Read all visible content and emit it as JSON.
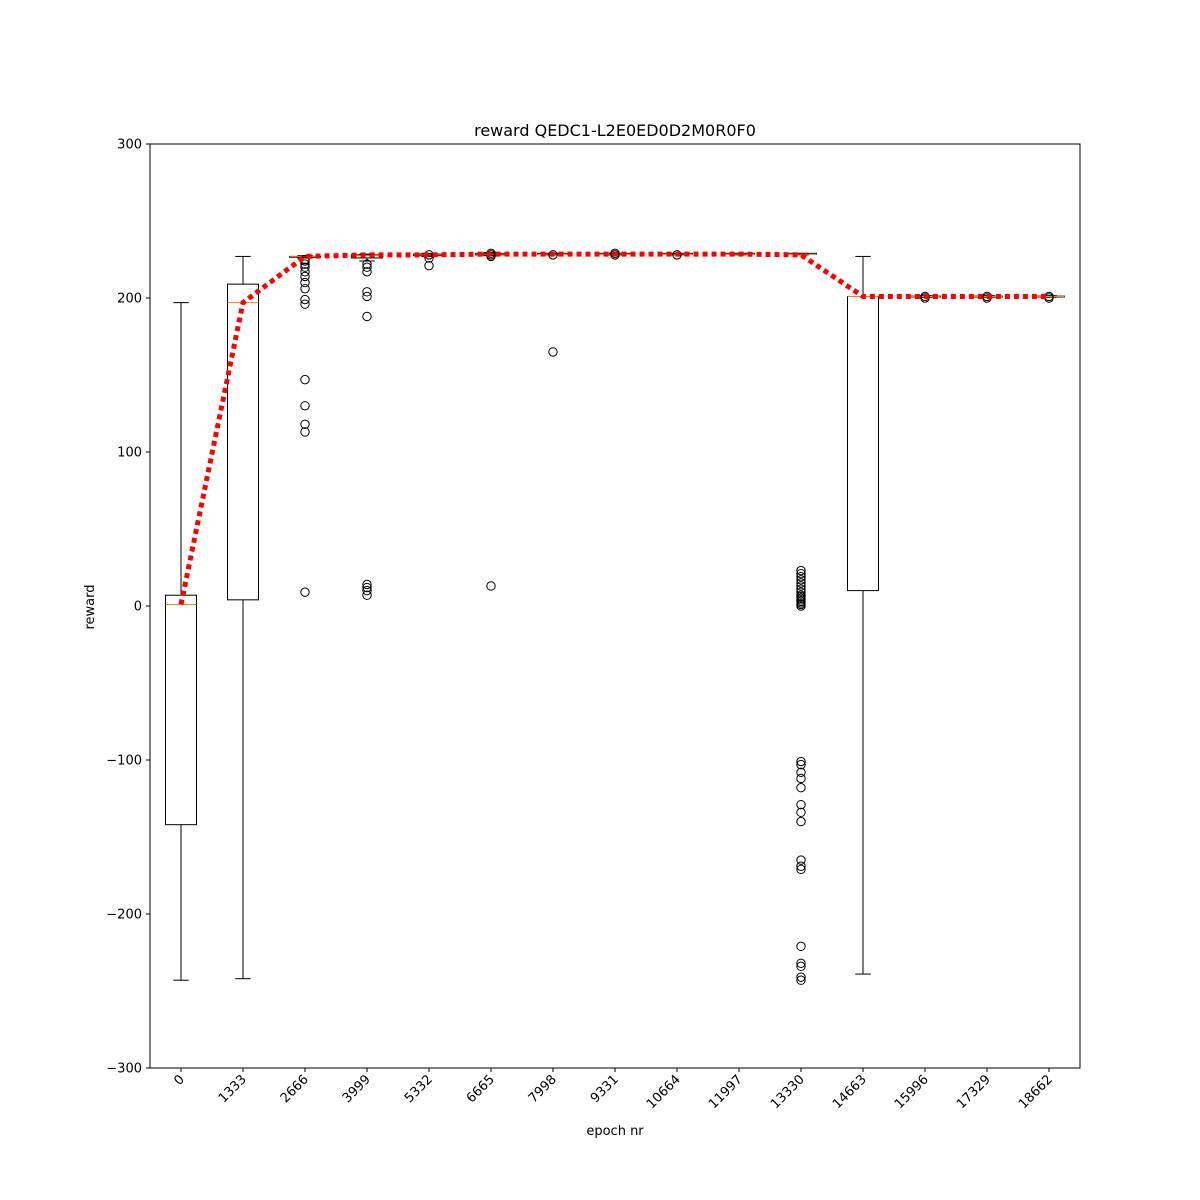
{
  "chart_data": {
    "type": "box",
    "title": "reward QEDC1-L2E0ED0D2M0R0F0",
    "xlabel": "epoch nr",
    "ylabel": "reward",
    "ylim": [
      -300,
      300
    ],
    "yticks": [
      -300,
      -200,
      -100,
      0,
      100,
      200,
      300
    ],
    "ytick_labels": [
      "−300",
      "−200",
      "−100",
      "0",
      "100",
      "200",
      "300"
    ],
    "categories": [
      "0",
      "1333",
      "2666",
      "3999",
      "5332",
      "6665",
      "7998",
      "9331",
      "10664",
      "11997",
      "13330",
      "14663",
      "15996",
      "17329",
      "18662"
    ],
    "boxes": [
      {
        "whislo": -243,
        "q1": -142,
        "med": 1,
        "q3": 7,
        "whishi": 197,
        "fliers": []
      },
      {
        "whislo": -242,
        "q1": 4,
        "med": 197,
        "q3": 209,
        "whishi": 227,
        "fliers": []
      },
      {
        "whislo": 226,
        "q1": 226.5,
        "med": 227,
        "q3": 227,
        "whishi": 227.5,
        "fliers": [
          9,
          113,
          118,
          130,
          147,
          196,
          199,
          206,
          210,
          214,
          217,
          220,
          222,
          224,
          225
        ]
      },
      {
        "whislo": 224,
        "q1": 226,
        "med": 227.5,
        "q3": 228,
        "whishi": 228.5,
        "fliers": [
          7,
          10,
          12,
          14,
          188,
          201,
          204,
          217,
          220,
          222
        ]
      },
      {
        "whislo": 227,
        "q1": 227.5,
        "med": 228,
        "q3": 228.5,
        "whishi": 229,
        "fliers": [
          221,
          226,
          228
        ]
      },
      {
        "whislo": 227.5,
        "q1": 228,
        "med": 228.5,
        "q3": 229,
        "whishi": 229.5,
        "fliers": [
          13,
          227,
          228,
          229
        ]
      },
      {
        "whislo": 228,
        "q1": 228.5,
        "med": 228.5,
        "q3": 229,
        "whishi": 229,
        "fliers": [
          165,
          228
        ]
      },
      {
        "whislo": 228,
        "q1": 228.5,
        "med": 228.5,
        "q3": 229,
        "whishi": 229,
        "fliers": [
          228,
          229
        ]
      },
      {
        "whislo": 228,
        "q1": 228.5,
        "med": 228.5,
        "q3": 229,
        "whishi": 229,
        "fliers": [
          228
        ]
      },
      {
        "whislo": 228,
        "q1": 228.5,
        "med": 228.5,
        "q3": 229,
        "whishi": 229,
        "fliers": []
      },
      {
        "whislo": 228,
        "q1": 228.5,
        "med": 228.5,
        "q3": 229,
        "whishi": 229,
        "fliers": [
          -243,
          -241,
          -234,
          -232,
          -221,
          -171,
          -169,
          -165,
          -140,
          -134,
          -129,
          -118,
          -112,
          -108,
          -103,
          -101,
          0,
          1,
          2,
          3,
          4,
          5,
          6,
          7,
          9,
          11,
          13,
          15,
          17,
          19,
          21,
          23
        ]
      },
      {
        "whislo": -239,
        "q1": 10,
        "med": 201,
        "q3": 201,
        "whishi": 227,
        "fliers": []
      },
      {
        "whislo": 200.5,
        "q1": 200.8,
        "med": 201,
        "q3": 201.2,
        "whishi": 201.5,
        "fliers": [
          200,
          201
        ]
      },
      {
        "whislo": 200.5,
        "q1": 200.8,
        "med": 201,
        "q3": 201.2,
        "whishi": 201.5,
        "fliers": [
          200,
          201
        ]
      },
      {
        "whislo": 200.5,
        "q1": 200.8,
        "med": 201,
        "q3": 201.2,
        "whishi": 201.5,
        "fliers": [
          200,
          201
        ]
      }
    ],
    "mean_line": {
      "values": [
        1,
        197,
        227,
        228,
        228,
        228.5,
        228.5,
        228.5,
        228.5,
        228.5,
        228,
        201,
        201,
        201,
        201
      ],
      "color": "#ff0000",
      "style": "dotted"
    },
    "colors": {
      "box": "#000000",
      "median": "#ff7f0e",
      "mean_line": "#ff0000",
      "background": "#ffffff"
    },
    "grid": false,
    "legend": "none"
  }
}
